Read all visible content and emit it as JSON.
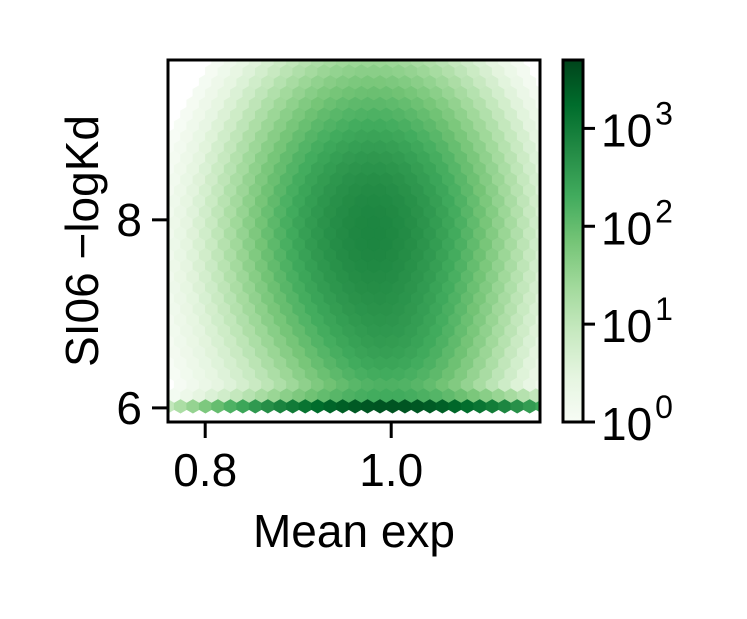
{
  "chart_data": {
    "type": "heatmap",
    "subtype": "hexbin",
    "xlabel": "Mean exp",
    "ylabel": "SI06 −logKd",
    "x_ticks": [
      0.8,
      1.0
    ],
    "x_tick_labels": [
      "0.8",
      "1.0"
    ],
    "y_ticks": [
      6,
      8
    ],
    "y_tick_labels": [
      "6",
      "8"
    ],
    "xlim": [
      0.76,
      1.16
    ],
    "ylim": [
      5.85,
      9.7
    ],
    "colorbar": {
      "scale": "log",
      "cmap": "Greens",
      "range": [
        1,
        5000
      ],
      "ticks": [
        1,
        10,
        100,
        1000
      ],
      "tick_labels": [
        {
          "base": "10",
          "exp": "0"
        },
        {
          "base": "10",
          "exp": "1"
        },
        {
          "base": "10",
          "exp": "2"
        },
        {
          "base": "10",
          "exp": "3"
        }
      ]
    },
    "density_components": [
      {
        "name": "main_cluster",
        "x": 0.98,
        "y": 7.9,
        "sx": 0.055,
        "sy": 0.7,
        "peak_count": 700
      },
      {
        "name": "stem",
        "x": 1.0,
        "y": 6.7,
        "sx": 0.045,
        "sy": 0.45,
        "peak_count": 180
      },
      {
        "name": "floor_band",
        "x": 1.0,
        "y": 6.0,
        "sx": 0.07,
        "sy": 0.05,
        "peak_count": 3500
      },
      {
        "name": "halo",
        "x": 0.97,
        "y": 7.5,
        "sx": 0.1,
        "sy": 1.3,
        "peak_count": 12
      }
    ],
    "grid": false
  }
}
